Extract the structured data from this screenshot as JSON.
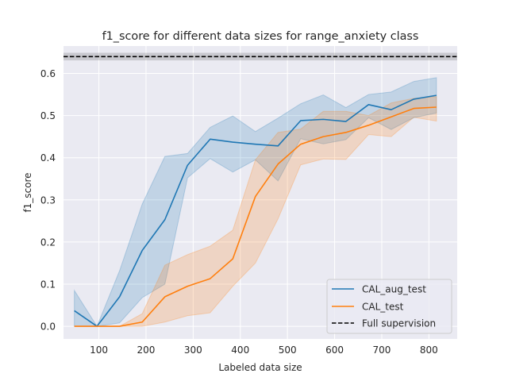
{
  "chart_data": {
    "type": "line",
    "title": "f1_score for different data sizes for range_anxiety class",
    "xlabel": "Labeled data size",
    "ylabel": "f1_score",
    "xlim": [
      25,
      860
    ],
    "ylim": [
      -0.03,
      0.665
    ],
    "xticks": [
      100,
      200,
      300,
      400,
      500,
      600,
      700,
      800
    ],
    "yticks": [
      0.0,
      0.1,
      0.2,
      0.3,
      0.4,
      0.5,
      0.6
    ],
    "ytick_labels": [
      "0.0",
      "0.1",
      "0.2",
      "0.3",
      "0.4",
      "0.5",
      "0.6"
    ],
    "grid": true,
    "legend_position": "lower-right",
    "x": [
      48,
      96,
      144,
      192,
      240,
      288,
      336,
      384,
      432,
      480,
      528,
      576,
      624,
      672,
      720,
      768,
      816
    ],
    "series": [
      {
        "name": "CAL_aug_test",
        "color": "#1f77b4",
        "values": [
          0.037,
          0.0,
          0.07,
          0.18,
          0.253,
          0.382,
          0.444,
          0.437,
          0.432,
          0.428,
          0.488,
          0.491,
          0.486,
          0.526,
          0.514,
          0.539,
          0.548
        ],
        "lower": [
          0.0,
          0.0,
          0.008,
          0.068,
          0.1,
          0.352,
          0.398,
          0.366,
          0.395,
          0.345,
          0.445,
          0.433,
          0.443,
          0.495,
          0.467,
          0.495,
          0.506
        ],
        "upper": [
          0.085,
          0.0,
          0.132,
          0.29,
          0.403,
          0.41,
          0.472,
          0.499,
          0.462,
          0.494,
          0.528,
          0.549,
          0.519,
          0.55,
          0.556,
          0.581,
          0.59
        ]
      },
      {
        "name": "CAL_test",
        "color": "#ff7f0e",
        "values": [
          0.0,
          0.0,
          0.0,
          0.01,
          0.07,
          0.095,
          0.113,
          0.16,
          0.308,
          0.385,
          0.432,
          0.45,
          0.46,
          0.477,
          0.497,
          0.517,
          0.52
        ],
        "lower": [
          0.0,
          0.0,
          0.0,
          0.0,
          0.01,
          0.025,
          0.032,
          0.095,
          0.15,
          0.255,
          0.383,
          0.397,
          0.396,
          0.455,
          0.45,
          0.496,
          0.487
        ],
        "upper": [
          0.0,
          0.0,
          0.0,
          0.03,
          0.145,
          0.17,
          0.19,
          0.228,
          0.395,
          0.46,
          0.468,
          0.51,
          0.51,
          0.5,
          0.53,
          0.541,
          0.545
        ]
      }
    ],
    "reference_line": {
      "name": "Full supervision",
      "value": 0.64,
      "lower": 0.631,
      "upper": 0.649,
      "color": "#000000"
    }
  }
}
